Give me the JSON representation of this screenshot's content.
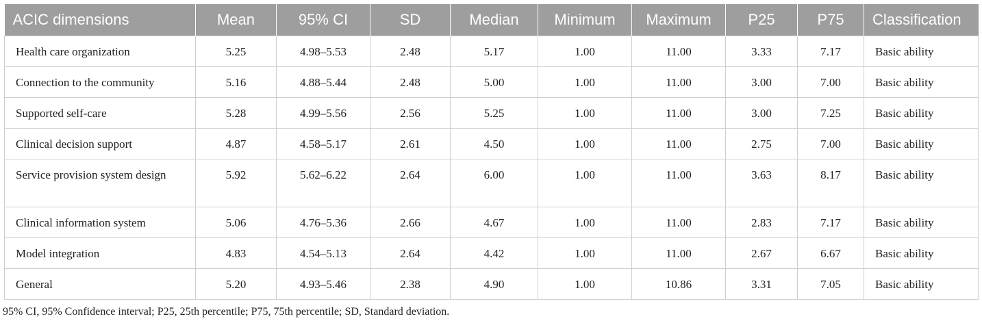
{
  "table": {
    "headers": [
      "ACIC dimensions",
      "Mean",
      "95% CI",
      "SD",
      "Median",
      "Minimum",
      "Maximum",
      "P25",
      "P75",
      "Classification"
    ],
    "rows": [
      [
        "Health care organization",
        "5.25",
        "4.98–5.53",
        "2.48",
        "5.17",
        "1.00",
        "11.00",
        "3.33",
        "7.17",
        "Basic ability"
      ],
      [
        "Connection to the community",
        "5.16",
        "4.88–5.44",
        "2.48",
        "5.00",
        "1.00",
        "11.00",
        "3.00",
        "7.00",
        "Basic ability"
      ],
      [
        "Supported self-care",
        "5.28",
        "4.99–5.56",
        "2.56",
        "5.25",
        "1.00",
        "11.00",
        "3.00",
        "7.25",
        "Basic ability"
      ],
      [
        "Clinical decision support",
        "4.87",
        "4.58–5.17",
        "2.61",
        "4.50",
        "1.00",
        "11.00",
        "2.75",
        "7.00",
        "Basic ability"
      ],
      [
        "Service provision system design",
        "5.92",
        "5.62–6.22",
        "2.64",
        "6.00",
        "1.00",
        "11.00",
        "3.63",
        "8.17",
        "Basic ability"
      ],
      [
        "Clinical information system",
        "5.06",
        "4.76–5.36",
        "2.66",
        "4.67",
        "1.00",
        "11.00",
        "2.83",
        "7.17",
        "Basic ability"
      ],
      [
        "Model integration",
        "4.83",
        "4.54–5.13",
        "2.64",
        "4.42",
        "1.00",
        "11.00",
        "2.67",
        "6.67",
        "Basic ability"
      ],
      [
        "General",
        "5.20",
        "4.93–5.46",
        "2.38",
        "4.90",
        "1.00",
        "10.86",
        "3.31",
        "7.05",
        "Basic ability"
      ]
    ],
    "header_bg": "#9e9e9e"
  },
  "footnote": "95% CI, 95% Confidence interval; P25, 25th percentile; P75, 75th percentile; SD, Standard deviation."
}
